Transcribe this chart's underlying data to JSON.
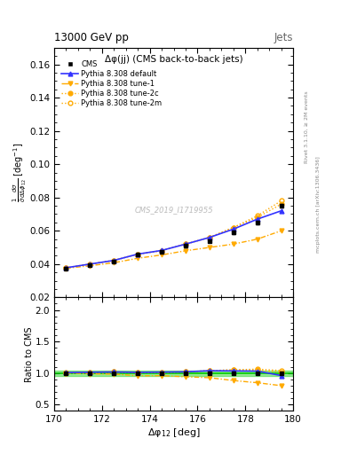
{
  "title_top": "13000 GeV pp",
  "title_right": "Jets",
  "plot_title": "Δφ(jj) (CMS back-to-back jets)",
  "xlabel": "Δφ$_{12}$ [deg]",
  "ylabel_main": "$\\frac{1}{\\bar{\\sigma}}\\frac{d\\sigma}{d\\Delta\\phi_{12}}$ [deg$^{-1}$]",
  "ylabel_ratio": "Ratio to CMS",
  "watermark": "CMS_2019_I1719955",
  "right_label": "Rivet 3.1.10, ≥ 2M events",
  "right_label2": "mcplots.cern.ch [arXiv:1306.3436]",
  "x": [
    170.5,
    171.5,
    172.5,
    173.5,
    174.5,
    175.5,
    176.5,
    177.5,
    178.5,
    179.5
  ],
  "cms_y": [
    0.0375,
    0.0395,
    0.0415,
    0.0455,
    0.0475,
    0.051,
    0.054,
    0.059,
    0.065,
    0.075
  ],
  "cms_yerr": [
    0.0005,
    0.0005,
    0.0005,
    0.0005,
    0.0005,
    0.001,
    0.001,
    0.001,
    0.001,
    0.001
  ],
  "pythia_default_y": [
    0.0378,
    0.04,
    0.0422,
    0.046,
    0.0482,
    0.052,
    0.056,
    0.061,
    0.067,
    0.072
  ],
  "pythia_tune1_y": [
    0.0375,
    0.039,
    0.0408,
    0.0435,
    0.0455,
    0.048,
    0.05,
    0.052,
    0.055,
    0.06
  ],
  "pythia_tune2c_y": [
    0.0378,
    0.04,
    0.0422,
    0.046,
    0.048,
    0.052,
    0.056,
    0.062,
    0.068,
    0.076
  ],
  "pythia_tune2m_y": [
    0.0376,
    0.04,
    0.0422,
    0.046,
    0.0481,
    0.052,
    0.056,
    0.062,
    0.069,
    0.078
  ],
  "ylim_main": [
    0.02,
    0.17
  ],
  "ylim_ratio": [
    0.4,
    2.2
  ],
  "yticks_main": [
    0.02,
    0.04,
    0.06,
    0.08,
    0.1,
    0.12,
    0.14,
    0.16
  ],
  "yticks_ratio": [
    0.5,
    1.0,
    1.5,
    2.0
  ],
  "xlim": [
    170.0,
    180.0
  ],
  "xticks": [
    170,
    172,
    174,
    176,
    178,
    180
  ],
  "color_cms": "#000000",
  "color_default": "#3333ff",
  "color_tune1": "#ffaa00",
  "color_tune2c": "#ffaa00",
  "color_tune2m": "#ffaa00",
  "color_ratio_band": "#00cc00",
  "ratio_band_half": 0.04
}
